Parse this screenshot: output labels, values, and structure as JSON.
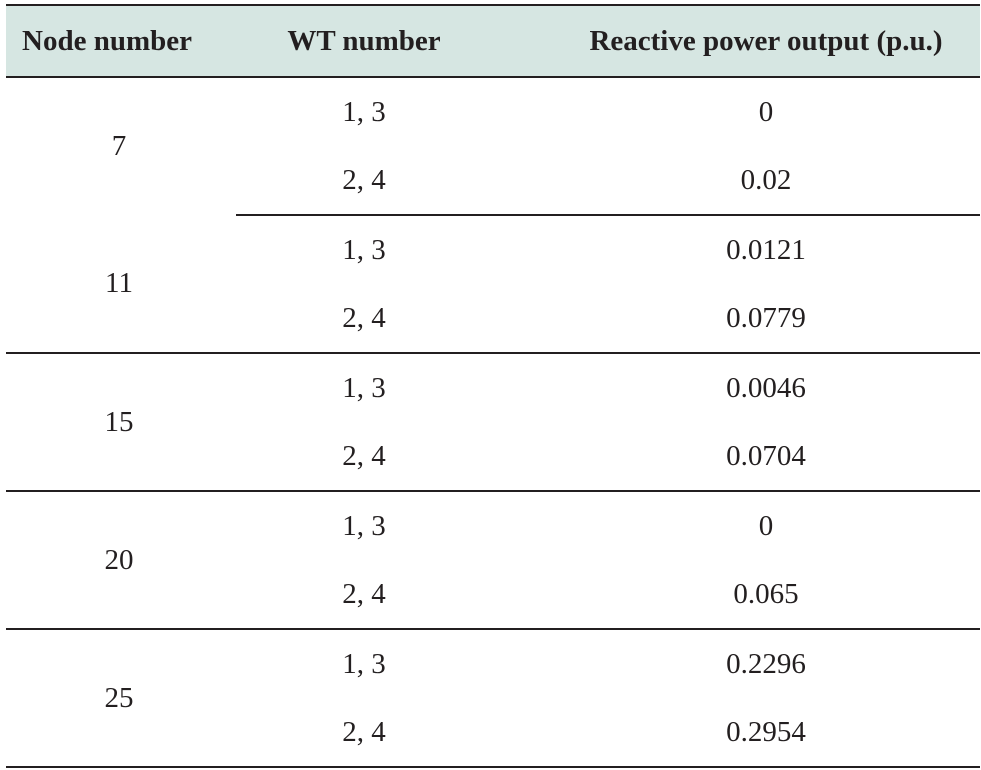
{
  "table": {
    "headers": [
      "Node number",
      "WT number",
      "Reactive power output (p.u.)"
    ],
    "groups": [
      {
        "node": "7",
        "rows": [
          {
            "wt": "1, 3",
            "q": "0"
          },
          {
            "wt": "2, 4",
            "q": "0.02"
          }
        ]
      },
      {
        "node": "11",
        "rows": [
          {
            "wt": "1, 3",
            "q": "0.0121"
          },
          {
            "wt": "2, 4",
            "q": "0.0779"
          }
        ]
      },
      {
        "node": "15",
        "rows": [
          {
            "wt": "1, 3",
            "q": "0.0046"
          },
          {
            "wt": "2, 4",
            "q": "0.0704"
          }
        ]
      },
      {
        "node": "20",
        "rows": [
          {
            "wt": "1, 3",
            "q": "0"
          },
          {
            "wt": "2, 4",
            "q": "0.065"
          }
        ]
      },
      {
        "node": "25",
        "rows": [
          {
            "wt": "1, 3",
            "q": "0.2296"
          },
          {
            "wt": "2, 4",
            "q": "0.2954"
          }
        ]
      }
    ]
  }
}
